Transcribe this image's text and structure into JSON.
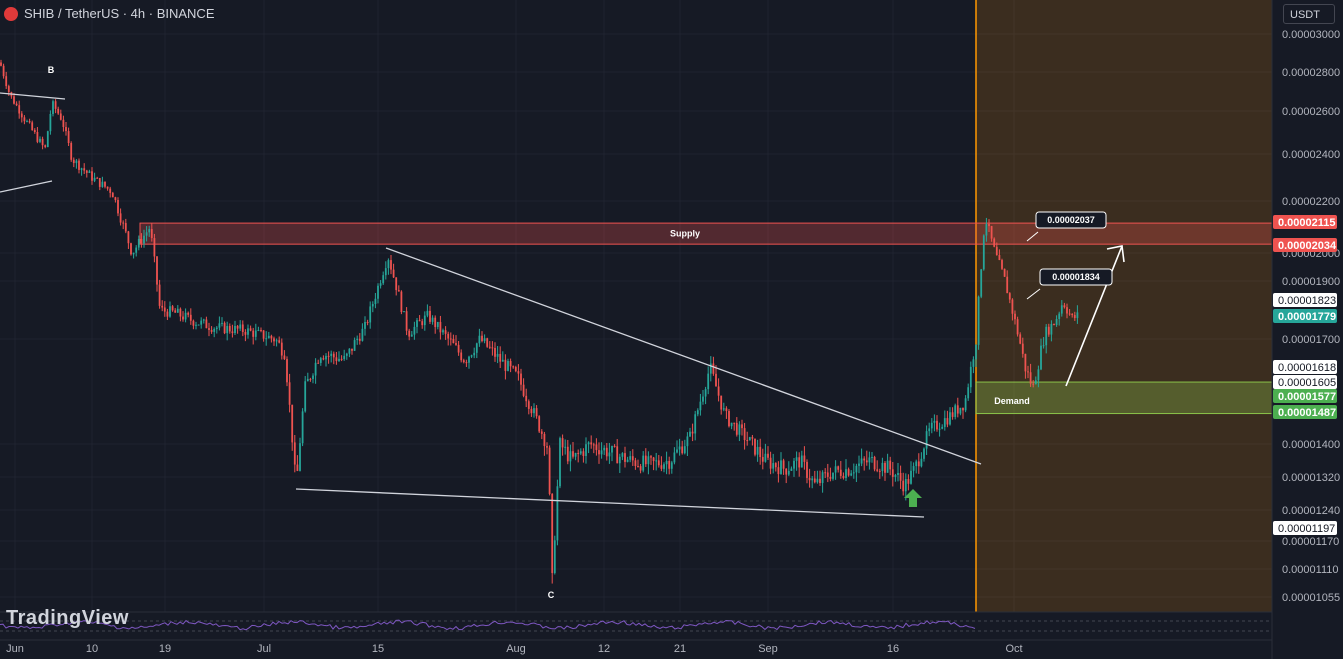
{
  "header": {
    "symbol": "SHIB / TetherUS · 4h · BINANCE"
  },
  "currency_button": "USDT",
  "watermark": "TradingView",
  "colors": {
    "background": "#161a25",
    "up": "#26a69a",
    "down": "#ef5350",
    "supply": "#ef5350",
    "demand": "#8bc34a",
    "projection": "#ff9800",
    "arrow": "#4caf50"
  },
  "chart_data": {
    "type": "candlestick",
    "price_ticks": [
      "0.00003000",
      "0.00002800",
      "0.00002600",
      "0.00002400",
      "0.00002200",
      "0.00002000",
      "0.00001900",
      "0.00001700",
      "0.00001400",
      "0.00001320",
      "0.00001240",
      "0.00001170",
      "0.00001110",
      "0.00001055"
    ],
    "price_labels": [
      {
        "text": "0.00002115",
        "style": "red"
      },
      {
        "text": "0.00002034",
        "style": "red"
      },
      {
        "text": "0.00001823",
        "style": "white"
      },
      {
        "text": "0.00001779",
        "style": "teal"
      },
      {
        "text": "0.00001618",
        "style": "white"
      },
      {
        "text": "0.00001605",
        "style": "white"
      },
      {
        "text": "0.00001577",
        "style": "green"
      },
      {
        "text": "0.00001487",
        "style": "green"
      },
      {
        "text": "0.00001197",
        "style": "white"
      }
    ],
    "time_ticks": [
      "Jun",
      "10",
      "19",
      "Jul",
      "15",
      "Aug",
      "12",
      "21",
      "Sep",
      "16",
      "Oct"
    ],
    "zones": [
      {
        "label": "Supply",
        "top": 2.115e-05,
        "bottom": 2.034e-05
      },
      {
        "label": "Demand",
        "top": 1.577e-05,
        "bottom": 1.487e-05
      }
    ],
    "pattern_labels": [
      "B",
      "C"
    ],
    "callouts": [
      "0.00002037",
      "0.00001834"
    ]
  }
}
